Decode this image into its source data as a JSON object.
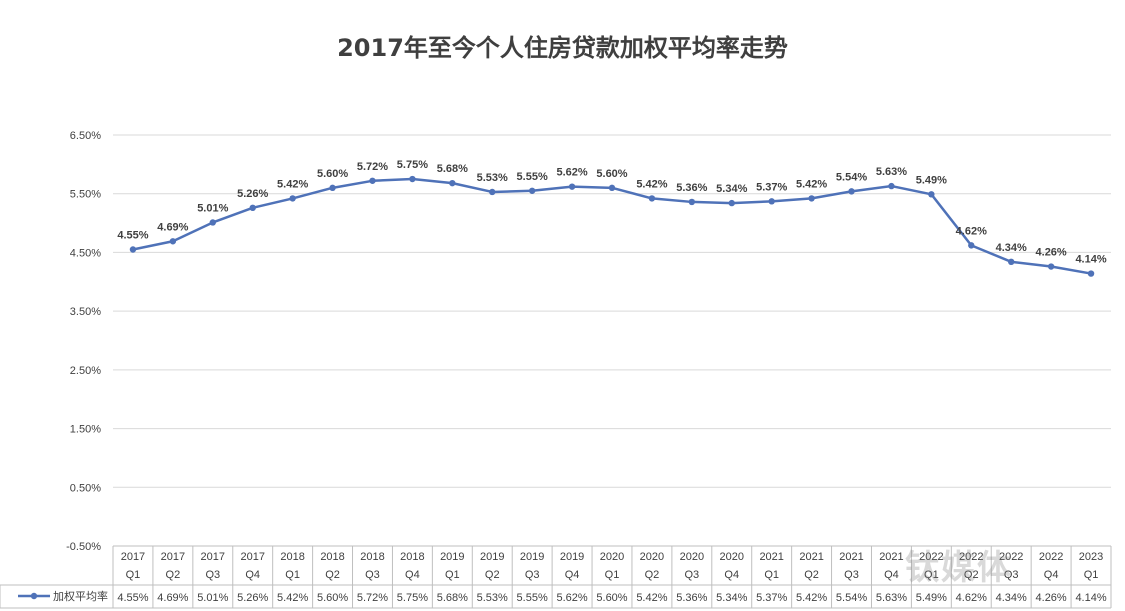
{
  "title": "2017年至今个人住房贷款加权平均率走势",
  "watermark": "钛媒体",
  "colors": {
    "line": "#4f72b8",
    "grid": "#d9d9d9",
    "text": "#404040"
  },
  "chart_data": {
    "type": "line",
    "title": "2017年至今个人住房贷款加权平均率走势",
    "xlabel": "",
    "ylabel": "",
    "ylim": [
      -0.5,
      6.5
    ],
    "yticks": [
      "6.50%",
      "5.50%",
      "4.50%",
      "3.50%",
      "2.50%",
      "1.50%",
      "0.50%",
      "-0.50%"
    ],
    "ytick_values": [
      6.5,
      5.5,
      4.5,
      3.5,
      2.5,
      1.5,
      0.5,
      -0.5
    ],
    "grid": true,
    "legend": "bottom-left (data table)",
    "categories": [
      [
        "2017",
        "Q1"
      ],
      [
        "2017",
        "Q2"
      ],
      [
        "2017",
        "Q3"
      ],
      [
        "2017",
        "Q4"
      ],
      [
        "2018",
        "Q1"
      ],
      [
        "2018",
        "Q2"
      ],
      [
        "2018",
        "Q3"
      ],
      [
        "2018",
        "Q4"
      ],
      [
        "2019",
        "Q1"
      ],
      [
        "2019",
        "Q2"
      ],
      [
        "2019",
        "Q3"
      ],
      [
        "2019",
        "Q4"
      ],
      [
        "2020",
        "Q1"
      ],
      [
        "2020",
        "Q2"
      ],
      [
        "2020",
        "Q3"
      ],
      [
        "2020",
        "Q4"
      ],
      [
        "2021",
        "Q1"
      ],
      [
        "2021",
        "Q2"
      ],
      [
        "2021",
        "Q3"
      ],
      [
        "2021",
        "Q4"
      ],
      [
        "2022",
        "Q1"
      ],
      [
        "2022",
        "Q2"
      ],
      [
        "2022",
        "Q3"
      ],
      [
        "2022",
        "Q4"
      ],
      [
        "2023",
        "Q1"
      ]
    ],
    "series": [
      {
        "name": "加权平均率",
        "values": [
          4.55,
          4.69,
          5.01,
          5.26,
          5.42,
          5.6,
          5.72,
          5.75,
          5.68,
          5.53,
          5.55,
          5.62,
          5.6,
          5.42,
          5.36,
          5.34,
          5.37,
          5.42,
          5.54,
          5.63,
          5.49,
          4.62,
          4.34,
          4.26,
          4.14
        ],
        "labels": [
          "4.55%",
          "4.69%",
          "5.01%",
          "5.26%",
          "5.42%",
          "5.60%",
          "5.72%",
          "5.75%",
          "5.68%",
          "5.53%",
          "5.55%",
          "5.62%",
          "5.60%",
          "5.42%",
          "5.36%",
          "5.34%",
          "5.37%",
          "5.42%",
          "5.54%",
          "5.63%",
          "5.49%",
          "4.62%",
          "4.34%",
          "4.26%",
          "4.14%"
        ]
      }
    ]
  }
}
